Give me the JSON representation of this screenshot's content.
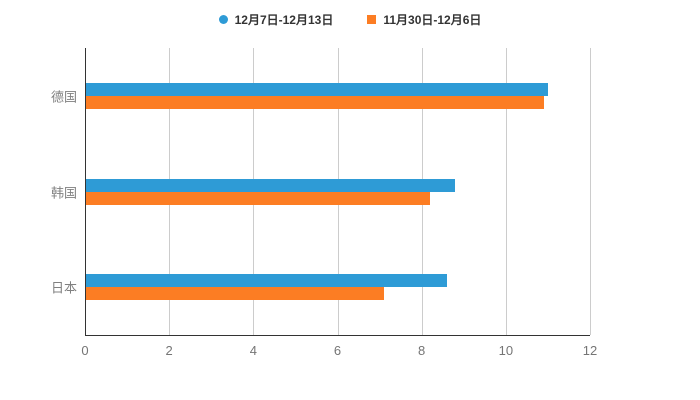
{
  "legend": {
    "items": [
      {
        "label": "12月7日-12月13日",
        "color": "#2E9BD6",
        "marker": "circle"
      },
      {
        "label": "11月30日-12月6日",
        "color": "#FC7D23",
        "marker": "square"
      }
    ]
  },
  "chart_data": {
    "type": "bar",
    "orientation": "horizontal",
    "title": "",
    "xlabel": "",
    "ylabel": "",
    "categories": [
      "德国",
      "韩国",
      "日本"
    ],
    "series": [
      {
        "name": "12月7日-12月13日",
        "color": "#2E9BD6",
        "values": [
          11.0,
          8.8,
          8.6
        ]
      },
      {
        "name": "11月30日-12月6日",
        "color": "#FC7D23",
        "values": [
          10.9,
          8.2,
          7.1
        ]
      }
    ],
    "xlim": [
      0,
      12
    ],
    "xticks": [
      0,
      2,
      4,
      6,
      8,
      10,
      12
    ],
    "grid": true,
    "legend_position": "top"
  }
}
